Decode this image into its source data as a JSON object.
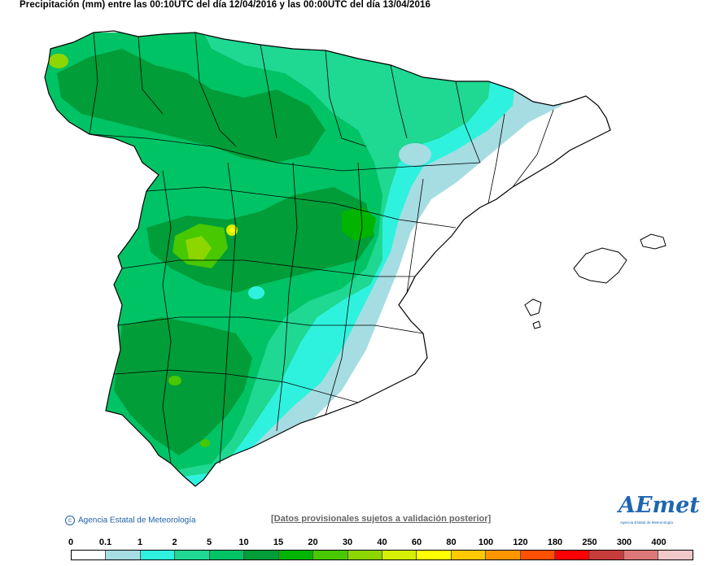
{
  "title": "Precipitación (mm) entre las 00:10UTC del día 12/04/2016 y las 00:00UTC del día 13/04/2016",
  "copyright": "Agencia Estatal de Meteorología",
  "disclaimer": "[Datos provisionales sujetos a validación posterior]",
  "logo": {
    "text": "AEmet",
    "subtitle": "Agencia Estatal de Meteorología"
  },
  "legend": {
    "ticks": [
      "0",
      "0.1",
      "1",
      "2",
      "5",
      "10",
      "15",
      "20",
      "30",
      "40",
      "60",
      "80",
      "100",
      "120",
      "180",
      "250",
      "300",
      "400"
    ],
    "colors": [
      "#ffffff",
      "#a6dde2",
      "#2ff2de",
      "#1fd891",
      "#00c365",
      "#009d38",
      "#00b400",
      "#47c800",
      "#8ed600",
      "#d5f000",
      "#ffff00",
      "#ffc800",
      "#ff9600",
      "#ff5000",
      "#ff0000",
      "#c83c3c",
      "#dc7878",
      "#f0c8c8"
    ]
  },
  "map_colors": {
    "coast": "#000000",
    "dry": "#ffffff",
    "very_light": "#a6dde2",
    "cyan": "#2ff2de",
    "green_light": "#1fd891",
    "green": "#00c365",
    "green_dark": "#009d38",
    "lime": "#8ed600",
    "yellow": "#ffff00"
  }
}
